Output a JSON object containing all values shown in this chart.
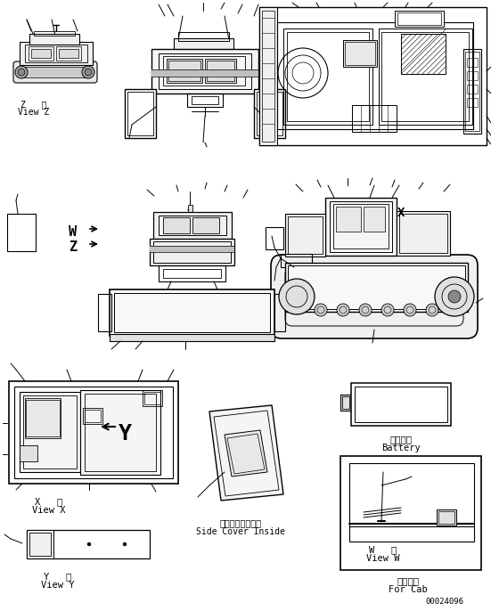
{
  "bg_color": "#ffffff",
  "line_color": "#000000",
  "page_number": "00024096",
  "labels": {
    "view_z_jp": "Z   視",
    "view_z_en": "View Z",
    "view_x_jp": "X   視",
    "view_x_en": "View X",
    "view_y_jp": "Y   視",
    "view_y_en": "View Y",
    "view_w_jp": "W   視",
    "view_w_en": "View W",
    "side_cover_jp": "サイドカバー内面",
    "side_cover_en": "Side Cover Inside",
    "battery_jp": "バッテリ",
    "battery_en": "Battery",
    "for_cab_jp": "キャブ用",
    "for_cab_en": "For Cab",
    "w_label": "W",
    "z_label": "Z",
    "x_label": "X"
  },
  "figsize": [
    5.51,
    6.86
  ],
  "dpi": 100
}
